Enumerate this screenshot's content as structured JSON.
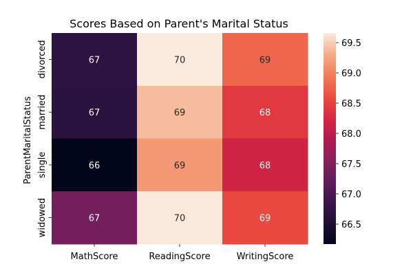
{
  "chart_data": {
    "type": "heatmap",
    "title": "Scores Based on Parent's Marital Status",
    "xlabel": "",
    "ylabel": "ParentMaritalStatus",
    "x_categories": [
      "MathScore",
      "ReadingScore",
      "WritingScore"
    ],
    "y_categories": [
      "divorced",
      "married",
      "single",
      "widowed"
    ],
    "values": [
      [
        66.69,
        69.66,
        68.8
      ],
      [
        66.66,
        69.39,
        68.42
      ],
      [
        66.17,
        69.16,
        68.17
      ],
      [
        67.37,
        69.65,
        68.56
      ]
    ],
    "annotations": [
      [
        "67",
        "70",
        "69"
      ],
      [
        "67",
        "69",
        "68"
      ],
      [
        "66",
        "69",
        "68"
      ],
      [
        "67",
        "70",
        "69"
      ]
    ],
    "colorbar": {
      "min": 66.17,
      "max": 69.66,
      "ticks": [
        66.5,
        67.0,
        67.5,
        68.0,
        68.5,
        69.0,
        69.5
      ],
      "tick_labels": [
        "66.5",
        "67.0",
        "67.5",
        "68.0",
        "68.5",
        "69.0",
        "69.5"
      ],
      "colormap": "rocket"
    },
    "grid": false
  }
}
